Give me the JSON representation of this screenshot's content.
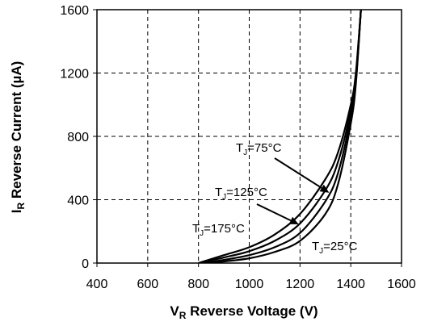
{
  "chart_data": {
    "type": "line",
    "title": "",
    "xlabel_main": "V",
    "xlabel_sub": "R",
    "xlabel_rest": " Reverse Voltage (V)",
    "ylabel_main": "I",
    "ylabel_sub": "R",
    "ylabel_rest": " Reverse Current (µA)",
    "xlim": [
      400,
      1600
    ],
    "ylim": [
      0,
      1600
    ],
    "xticks": [
      400,
      600,
      800,
      1000,
      1200,
      1400,
      1600
    ],
    "yticks": [
      0,
      400,
      800,
      1200,
      1600
    ],
    "grid": true,
    "series": [
      {
        "name": "TJ=175°C",
        "x": [
          800,
          900,
          1000,
          1100,
          1200,
          1300,
          1350,
          1400,
          1420,
          1440
        ],
        "y": [
          0,
          50,
          100,
          180,
          310,
          530,
          700,
          1000,
          1200,
          1600
        ]
      },
      {
        "name": "TJ=125°C",
        "x": [
          800,
          900,
          1000,
          1100,
          1200,
          1300,
          1350,
          1400,
          1420,
          1440
        ],
        "y": [
          0,
          35,
          75,
          140,
          250,
          460,
          640,
          960,
          1180,
          1600
        ]
      },
      {
        "name": "TJ=75°C",
        "x": [
          820,
          900,
          1000,
          1100,
          1200,
          1300,
          1350,
          1400,
          1420,
          1440
        ],
        "y": [
          0,
          20,
          50,
          100,
          190,
          390,
          570,
          920,
          1150,
          1600
        ]
      },
      {
        "name": "TJ=25°C",
        "x": [
          850,
          900,
          1000,
          1100,
          1200,
          1300,
          1350,
          1400,
          1420,
          1440
        ],
        "y": [
          0,
          10,
          30,
          70,
          140,
          310,
          500,
          880,
          1130,
          1600
        ]
      }
    ],
    "annotations": [
      {
        "main": "T",
        "sub": "J",
        "rest": "=75°C",
        "target_series": 2,
        "target_x": 1315
      },
      {
        "main": "T",
        "sub": "J",
        "rest": "=125°C",
        "target_series": 1,
        "target_x": 1195
      },
      {
        "main": "T",
        "sub": "J",
        "rest": "=175°C"
      },
      {
        "main": "T",
        "sub": "J",
        "rest": "=25°C"
      }
    ]
  }
}
